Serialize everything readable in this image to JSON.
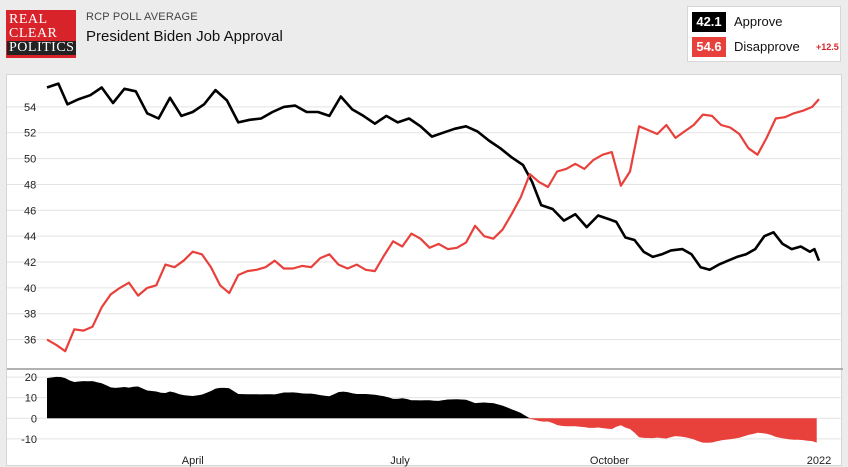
{
  "logo": {
    "line1": "REAL",
    "line2": "CLEAR",
    "line3": "POLITICS"
  },
  "header": {
    "kicker": "RCP POLL AVERAGE",
    "title": "President Biden Job Approval"
  },
  "legend": {
    "approve": {
      "value": "42.1",
      "label": "Approve",
      "color": "#000000"
    },
    "disapprove": {
      "value": "54.6",
      "label": "Disapprove",
      "color": "#e8413c"
    },
    "spread": "+12.5"
  },
  "chart_data": {
    "type": "line",
    "title": "President Biden Job Approval",
    "x_unit": "date",
    "x_ticks": [
      {
        "label": "April",
        "date": "2021-04-01"
      },
      {
        "label": "July",
        "date": "2021-07-01"
      },
      {
        "label": "October",
        "date": "2021-10-01"
      },
      {
        "label": "2022",
        "date": "2022-01-01"
      }
    ],
    "xlim": [
      "2021-01-27",
      "2022-01-01"
    ],
    "main": {
      "ylim": [
        34.5,
        56
      ],
      "yticks": [
        36,
        38,
        40,
        42,
        44,
        46,
        48,
        50,
        52,
        54
      ],
      "grid": true
    },
    "spread_panel": {
      "ylim": [
        -13,
        22
      ],
      "yticks": [
        -10,
        0,
        10,
        20
      ],
      "positive_color": "#000000",
      "negative_color": "#e8413c"
    },
    "series": [
      {
        "name": "Approve",
        "color": "#000000",
        "points": [
          [
            "2021-01-27",
            55.5
          ],
          [
            "2021-02-01",
            55.8
          ],
          [
            "2021-02-05",
            54.2
          ],
          [
            "2021-02-10",
            54.6
          ],
          [
            "2021-02-15",
            54.9
          ],
          [
            "2021-02-20",
            55.5
          ],
          [
            "2021-02-25",
            54.3
          ],
          [
            "2021-03-02",
            55.4
          ],
          [
            "2021-03-07",
            55.2
          ],
          [
            "2021-03-12",
            53.5
          ],
          [
            "2021-03-17",
            53.1
          ],
          [
            "2021-03-22",
            54.7
          ],
          [
            "2021-03-27",
            53.3
          ],
          [
            "2021-04-01",
            53.6
          ],
          [
            "2021-04-06",
            54.2
          ],
          [
            "2021-04-11",
            55.3
          ],
          [
            "2021-04-16",
            54.5
          ],
          [
            "2021-04-21",
            52.8
          ],
          [
            "2021-04-26",
            53.0
          ],
          [
            "2021-05-01",
            53.1
          ],
          [
            "2021-05-06",
            53.6
          ],
          [
            "2021-05-11",
            54.0
          ],
          [
            "2021-05-16",
            54.1
          ],
          [
            "2021-05-21",
            53.6
          ],
          [
            "2021-05-26",
            53.6
          ],
          [
            "2021-05-31",
            53.3
          ],
          [
            "2021-06-05",
            54.8
          ],
          [
            "2021-06-10",
            53.8
          ],
          [
            "2021-06-15",
            53.3
          ],
          [
            "2021-06-20",
            52.7
          ],
          [
            "2021-06-25",
            53.3
          ],
          [
            "2021-06-30",
            52.8
          ],
          [
            "2021-07-05",
            53.1
          ],
          [
            "2021-07-10",
            52.5
          ],
          [
            "2021-07-15",
            51.7
          ],
          [
            "2021-07-20",
            52.0
          ],
          [
            "2021-07-25",
            52.3
          ],
          [
            "2021-07-30",
            52.5
          ],
          [
            "2021-08-04",
            52.1
          ],
          [
            "2021-08-09",
            51.4
          ],
          [
            "2021-08-14",
            50.8
          ],
          [
            "2021-08-19",
            50.1
          ],
          [
            "2021-08-24",
            49.5
          ],
          [
            "2021-08-28",
            48.2
          ],
          [
            "2021-09-01",
            46.4
          ],
          [
            "2021-09-06",
            46.1
          ],
          [
            "2021-09-11",
            45.2
          ],
          [
            "2021-09-16",
            45.7
          ],
          [
            "2021-09-21",
            44.7
          ],
          [
            "2021-09-26",
            45.6
          ],
          [
            "2021-10-01",
            45.3
          ],
          [
            "2021-10-04",
            45.1
          ],
          [
            "2021-10-08",
            43.9
          ],
          [
            "2021-10-12",
            43.7
          ],
          [
            "2021-10-16",
            42.8
          ],
          [
            "2021-10-20",
            42.4
          ],
          [
            "2021-10-24",
            42.6
          ],
          [
            "2021-10-28",
            42.9
          ],
          [
            "2021-11-02",
            43.0
          ],
          [
            "2021-11-06",
            42.6
          ],
          [
            "2021-11-10",
            41.6
          ],
          [
            "2021-11-14",
            41.4
          ],
          [
            "2021-11-18",
            41.8
          ],
          [
            "2021-11-22",
            42.1
          ],
          [
            "2021-11-26",
            42.4
          ],
          [
            "2021-11-30",
            42.6
          ],
          [
            "2021-12-04",
            43.0
          ],
          [
            "2021-12-08",
            44.0
          ],
          [
            "2021-12-12",
            44.3
          ],
          [
            "2021-12-16",
            43.4
          ],
          [
            "2021-12-20",
            43.0
          ],
          [
            "2021-12-24",
            43.2
          ],
          [
            "2021-12-28",
            42.8
          ],
          [
            "2021-12-30",
            43.0
          ],
          [
            "2022-01-01",
            42.1
          ]
        ]
      },
      {
        "name": "Disapprove",
        "color": "#e8413c",
        "points": [
          [
            "2021-01-27",
            36.0
          ],
          [
            "2021-01-31",
            35.6
          ],
          [
            "2021-02-04",
            35.1
          ],
          [
            "2021-02-08",
            36.8
          ],
          [
            "2021-02-12",
            36.7
          ],
          [
            "2021-02-16",
            37.0
          ],
          [
            "2021-02-20",
            38.5
          ],
          [
            "2021-02-24",
            39.5
          ],
          [
            "2021-02-28",
            40.0
          ],
          [
            "2021-03-04",
            40.4
          ],
          [
            "2021-03-08",
            39.4
          ],
          [
            "2021-03-12",
            40.0
          ],
          [
            "2021-03-16",
            40.2
          ],
          [
            "2021-03-20",
            41.8
          ],
          [
            "2021-03-24",
            41.6
          ],
          [
            "2021-03-28",
            42.1
          ],
          [
            "2021-04-01",
            42.8
          ],
          [
            "2021-04-05",
            42.6
          ],
          [
            "2021-04-09",
            41.6
          ],
          [
            "2021-04-13",
            40.2
          ],
          [
            "2021-04-17",
            39.6
          ],
          [
            "2021-04-21",
            41.0
          ],
          [
            "2021-04-25",
            41.3
          ],
          [
            "2021-04-29",
            41.4
          ],
          [
            "2021-05-03",
            41.6
          ],
          [
            "2021-05-07",
            42.1
          ],
          [
            "2021-05-11",
            41.5
          ],
          [
            "2021-05-15",
            41.5
          ],
          [
            "2021-05-19",
            41.7
          ],
          [
            "2021-05-23",
            41.6
          ],
          [
            "2021-05-27",
            42.3
          ],
          [
            "2021-05-31",
            42.6
          ],
          [
            "2021-06-04",
            41.8
          ],
          [
            "2021-06-08",
            41.5
          ],
          [
            "2021-06-12",
            41.8
          ],
          [
            "2021-06-16",
            41.4
          ],
          [
            "2021-06-20",
            41.3
          ],
          [
            "2021-06-24",
            42.5
          ],
          [
            "2021-06-28",
            43.6
          ],
          [
            "2021-07-02",
            43.2
          ],
          [
            "2021-07-06",
            44.2
          ],
          [
            "2021-07-10",
            43.8
          ],
          [
            "2021-07-14",
            43.1
          ],
          [
            "2021-07-18",
            43.4
          ],
          [
            "2021-07-22",
            43.0
          ],
          [
            "2021-07-26",
            43.1
          ],
          [
            "2021-07-30",
            43.5
          ],
          [
            "2021-08-03",
            44.8
          ],
          [
            "2021-08-07",
            44.0
          ],
          [
            "2021-08-11",
            43.8
          ],
          [
            "2021-08-15",
            44.5
          ],
          [
            "2021-08-19",
            45.7
          ],
          [
            "2021-08-23",
            47.0
          ],
          [
            "2021-08-27",
            48.8
          ],
          [
            "2021-08-31",
            48.2
          ],
          [
            "2021-09-04",
            47.8
          ],
          [
            "2021-09-08",
            49.0
          ],
          [
            "2021-09-12",
            49.2
          ],
          [
            "2021-09-16",
            49.6
          ],
          [
            "2021-09-20",
            49.2
          ],
          [
            "2021-09-24",
            49.9
          ],
          [
            "2021-09-28",
            50.3
          ],
          [
            "2021-10-02",
            50.5
          ],
          [
            "2021-10-06",
            47.9
          ],
          [
            "2021-10-10",
            49.0
          ],
          [
            "2021-10-14",
            52.5
          ],
          [
            "2021-10-18",
            52.2
          ],
          [
            "2021-10-22",
            51.9
          ],
          [
            "2021-10-26",
            52.6
          ],
          [
            "2021-10-30",
            51.6
          ],
          [
            "2021-11-03",
            52.1
          ],
          [
            "2021-11-07",
            52.6
          ],
          [
            "2021-11-11",
            53.4
          ],
          [
            "2021-11-15",
            53.3
          ],
          [
            "2021-11-19",
            52.6
          ],
          [
            "2021-11-23",
            52.4
          ],
          [
            "2021-11-27",
            51.9
          ],
          [
            "2021-12-01",
            50.8
          ],
          [
            "2021-12-05",
            50.3
          ],
          [
            "2021-12-09",
            51.6
          ],
          [
            "2021-12-13",
            53.1
          ],
          [
            "2021-12-17",
            53.2
          ],
          [
            "2021-12-21",
            53.5
          ],
          [
            "2021-12-25",
            53.7
          ],
          [
            "2021-12-29",
            54.0
          ],
          [
            "2022-01-01",
            54.6
          ]
        ]
      }
    ]
  }
}
